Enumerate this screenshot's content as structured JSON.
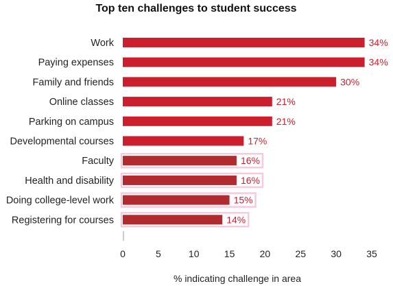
{
  "chart_data": {
    "type": "bar",
    "orientation": "horizontal",
    "title": "Top ten challenges to student success",
    "xlabel": "% indicating challenge in area",
    "ylabel": "",
    "categories": [
      "Work",
      "Paying expenses",
      "Family and friends",
      "Online classes",
      "Parking on campus",
      "Developmental courses",
      "Faculty",
      "Health and disability",
      "Doing college-level work",
      "Registering for courses"
    ],
    "values": [
      34,
      34,
      30,
      21,
      21,
      17,
      16,
      16,
      15,
      14
    ],
    "value_labels": [
      "34%",
      "34%",
      "30%",
      "21%",
      "21%",
      "17%",
      "16%",
      "16%",
      "15%",
      "14%"
    ],
    "xlim": [
      0,
      35
    ],
    "xticks": [
      0,
      5,
      10,
      15,
      20,
      25,
      30,
      35
    ],
    "xtick_labels": [
      "0",
      "5",
      "10",
      "15",
      "20",
      "25",
      "30",
      "35"
    ],
    "grid": false,
    "colors": {
      "bar": "#cc1f2d",
      "bar_highlighted": "#b02a2e",
      "highlight_outline": "#f7c9dd",
      "value_text": "#c62232"
    },
    "highlighted": [
      false,
      false,
      false,
      false,
      false,
      false,
      true,
      true,
      true,
      true
    ]
  }
}
